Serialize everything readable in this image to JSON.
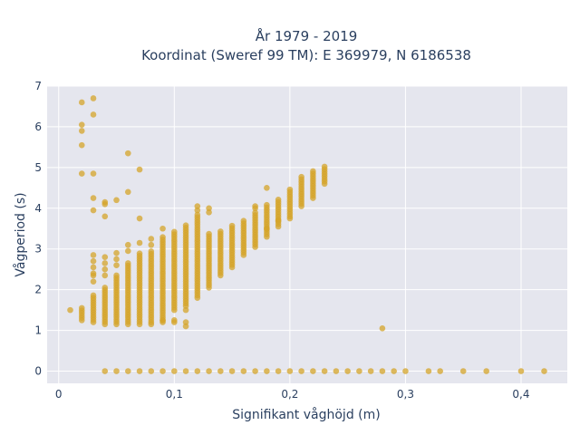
{
  "chart_data": {
    "type": "scatter",
    "title_line1": "År 1979 - 2019",
    "title_line2": "Koordinat (Sweref 99 TM): E 369979, N 6186538",
    "xlabel": "Signifikant våghöjd (m)",
    "ylabel": "Vågperiod (s)",
    "xlim": [
      -0.01,
      0.44
    ],
    "ylim": [
      -0.3,
      7.0
    ],
    "xticks": [
      0,
      0.1,
      0.2,
      0.3,
      0.4
    ],
    "xtick_labels": [
      "0",
      "0,1",
      "0,2",
      "0,3",
      "0,4"
    ],
    "yticks": [
      0,
      1,
      2,
      3,
      4,
      5,
      6,
      7
    ],
    "ytick_labels": [
      "0",
      "1",
      "2",
      "3",
      "4",
      "5",
      "6",
      "7"
    ],
    "grid": true,
    "marker_color": "#d4a42a",
    "plot_bg": "#e5e6ee",
    "columns": [
      {
        "x": 0.01,
        "ymin": 1.5,
        "ymax": 1.5
      },
      {
        "x": 0.02,
        "ymin": 1.25,
        "ymax": 1.6
      },
      {
        "x": 0.03,
        "ymin": 1.2,
        "ymax": 1.9
      },
      {
        "x": 0.04,
        "ymin": 1.15,
        "ymax": 2.1
      },
      {
        "x": 0.05,
        "ymin": 1.15,
        "ymax": 2.4
      },
      {
        "x": 0.06,
        "ymin": 1.15,
        "ymax": 2.7
      },
      {
        "x": 0.07,
        "ymin": 1.15,
        "ymax": 2.9
      },
      {
        "x": 0.08,
        "ymin": 1.2,
        "ymax": 2.95
      },
      {
        "x": 0.09,
        "ymin": 1.25,
        "ymax": 3.3
      },
      {
        "x": 0.1,
        "ymin": 1.5,
        "ymax": 3.45
      },
      {
        "x": 0.11,
        "ymin": 1.6,
        "ymax": 3.6
      },
      {
        "x": 0.12,
        "ymin": 1.8,
        "ymax": 3.85
      },
      {
        "x": 0.13,
        "ymin": 2.05,
        "ymax": 3.4
      },
      {
        "x": 0.14,
        "ymin": 2.35,
        "ymax": 3.45
      },
      {
        "x": 0.15,
        "ymin": 2.55,
        "ymax": 3.6
      },
      {
        "x": 0.16,
        "ymin": 2.85,
        "ymax": 3.7
      },
      {
        "x": 0.17,
        "ymin": 3.05,
        "ymax": 3.9
      },
      {
        "x": 0.18,
        "ymin": 3.3,
        "ymax": 4.1
      },
      {
        "x": 0.19,
        "ymin": 3.55,
        "ymax": 4.25
      },
      {
        "x": 0.2,
        "ymin": 3.8,
        "ymax": 4.5
      },
      {
        "x": 0.21,
        "ymin": 4.05,
        "ymax": 4.8
      },
      {
        "x": 0.22,
        "ymin": 4.25,
        "ymax": 4.95
      },
      {
        "x": 0.23,
        "ymin": 4.6,
        "ymax": 5.05
      }
    ],
    "column_step": 0.06,
    "points": [
      {
        "x": 0.02,
        "y": 6.6
      },
      {
        "x": 0.02,
        "y": 6.05
      },
      {
        "x": 0.02,
        "y": 5.9
      },
      {
        "x": 0.02,
        "y": 5.55
      },
      {
        "x": 0.02,
        "y": 4.85
      },
      {
        "x": 0.03,
        "y": 6.7
      },
      {
        "x": 0.03,
        "y": 6.3
      },
      {
        "x": 0.03,
        "y": 4.85
      },
      {
        "x": 0.03,
        "y": 4.25
      },
      {
        "x": 0.03,
        "y": 3.95
      },
      {
        "x": 0.03,
        "y": 2.85
      },
      {
        "x": 0.03,
        "y": 2.7
      },
      {
        "x": 0.03,
        "y": 2.55
      },
      {
        "x": 0.03,
        "y": 2.4
      },
      {
        "x": 0.03,
        "y": 2.35
      },
      {
        "x": 0.03,
        "y": 2.2
      },
      {
        "x": 0.04,
        "y": 4.15
      },
      {
        "x": 0.04,
        "y": 4.1
      },
      {
        "x": 0.04,
        "y": 3.8
      },
      {
        "x": 0.04,
        "y": 2.8
      },
      {
        "x": 0.04,
        "y": 2.65
      },
      {
        "x": 0.04,
        "y": 2.5
      },
      {
        "x": 0.04,
        "y": 2.35
      },
      {
        "x": 0.05,
        "y": 4.2
      },
      {
        "x": 0.05,
        "y": 2.9
      },
      {
        "x": 0.05,
        "y": 2.75
      },
      {
        "x": 0.05,
        "y": 2.6
      },
      {
        "x": 0.06,
        "y": 5.35
      },
      {
        "x": 0.06,
        "y": 4.4
      },
      {
        "x": 0.06,
        "y": 3.1
      },
      {
        "x": 0.06,
        "y": 2.95
      },
      {
        "x": 0.07,
        "y": 4.95
      },
      {
        "x": 0.07,
        "y": 3.75
      },
      {
        "x": 0.07,
        "y": 3.15
      },
      {
        "x": 0.08,
        "y": 3.25
      },
      {
        "x": 0.08,
        "y": 3.1
      },
      {
        "x": 0.08,
        "y": 1.15
      },
      {
        "x": 0.09,
        "y": 3.5
      },
      {
        "x": 0.09,
        "y": 1.25
      },
      {
        "x": 0.09,
        "y": 1.2
      },
      {
        "x": 0.1,
        "y": 1.25
      },
      {
        "x": 0.1,
        "y": 1.2
      },
      {
        "x": 0.11,
        "y": 1.5
      },
      {
        "x": 0.11,
        "y": 1.2
      },
      {
        "x": 0.11,
        "y": 1.1
      },
      {
        "x": 0.12,
        "y": 4.05
      },
      {
        "x": 0.12,
        "y": 3.95
      },
      {
        "x": 0.13,
        "y": 4.0
      },
      {
        "x": 0.13,
        "y": 3.9
      },
      {
        "x": 0.17,
        "y": 4.05
      },
      {
        "x": 0.17,
        "y": 4.0
      },
      {
        "x": 0.18,
        "y": 4.5
      },
      {
        "x": 0.18,
        "y": 3.5
      },
      {
        "x": 0.19,
        "y": 3.7
      },
      {
        "x": 0.2,
        "y": 3.75
      },
      {
        "x": 0.28,
        "y": 1.05
      },
      {
        "x": 0.04,
        "y": 0
      },
      {
        "x": 0.05,
        "y": 0
      },
      {
        "x": 0.06,
        "y": 0
      },
      {
        "x": 0.07,
        "y": 0
      },
      {
        "x": 0.08,
        "y": 0
      },
      {
        "x": 0.09,
        "y": 0
      },
      {
        "x": 0.1,
        "y": 0
      },
      {
        "x": 0.11,
        "y": 0
      },
      {
        "x": 0.12,
        "y": 0
      },
      {
        "x": 0.13,
        "y": 0
      },
      {
        "x": 0.14,
        "y": 0
      },
      {
        "x": 0.15,
        "y": 0
      },
      {
        "x": 0.16,
        "y": 0
      },
      {
        "x": 0.17,
        "y": 0
      },
      {
        "x": 0.18,
        "y": 0
      },
      {
        "x": 0.19,
        "y": 0
      },
      {
        "x": 0.2,
        "y": 0
      },
      {
        "x": 0.21,
        "y": 0
      },
      {
        "x": 0.22,
        "y": 0
      },
      {
        "x": 0.23,
        "y": 0
      },
      {
        "x": 0.24,
        "y": 0
      },
      {
        "x": 0.25,
        "y": 0
      },
      {
        "x": 0.26,
        "y": 0
      },
      {
        "x": 0.27,
        "y": 0
      },
      {
        "x": 0.28,
        "y": 0
      },
      {
        "x": 0.29,
        "y": 0
      },
      {
        "x": 0.3,
        "y": 0
      },
      {
        "x": 0.32,
        "y": 0
      },
      {
        "x": 0.33,
        "y": 0
      },
      {
        "x": 0.35,
        "y": 0
      },
      {
        "x": 0.37,
        "y": 0
      },
      {
        "x": 0.4,
        "y": 0
      },
      {
        "x": 0.42,
        "y": 0
      }
    ]
  }
}
